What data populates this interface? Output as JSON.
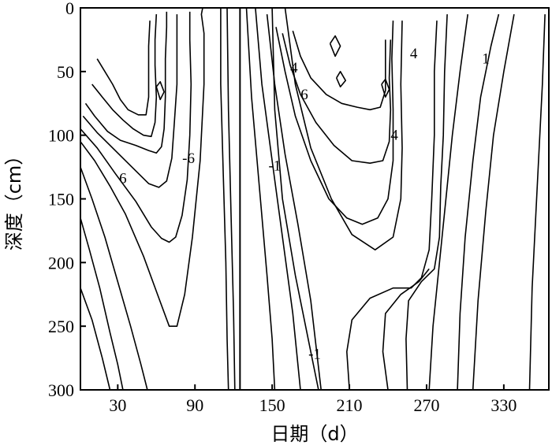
{
  "chart_data": {
    "type": "contour",
    "xlabel": "日期（d）",
    "ylabel": "深度（cm）",
    "xlim": [
      1,
      365
    ],
    "ylim": [
      0,
      300
    ],
    "y_inverted": true,
    "x_ticks": [
      30,
      90,
      150,
      210,
      270,
      330
    ],
    "y_ticks": [
      0,
      50,
      100,
      150,
      200,
      250,
      300
    ],
    "x_tick_labels": [
      "30",
      "90",
      "150",
      "210",
      "270",
      "330"
    ],
    "y_tick_labels": [
      "0",
      "50",
      "100",
      "150",
      "200",
      "250",
      "300"
    ],
    "vertical_marker_x": 125,
    "contour_labels": [
      {
        "text": "6",
        "x": 34,
        "y": 134
      },
      {
        "text": "-6",
        "x": 85,
        "y": 118
      },
      {
        "text": "-1",
        "x": 152,
        "y": 124
      },
      {
        "text": "-1",
        "x": 183,
        "y": 272
      },
      {
        "text": "4",
        "x": 167,
        "y": 47
      },
      {
        "text": "6",
        "x": 175,
        "y": 68
      },
      {
        "text": "4",
        "x": 245,
        "y": 100
      },
      {
        "text": "4",
        "x": 260,
        "y": 36
      },
      {
        "text": "1",
        "x": 316,
        "y": 40
      }
    ],
    "contours": [
      {
        "points": [
          [
            1,
            220
          ],
          [
            10,
            245
          ],
          [
            18,
            275
          ],
          [
            24,
            300
          ]
        ]
      },
      {
        "points": [
          [
            1,
            165
          ],
          [
            8,
            190
          ],
          [
            16,
            220
          ],
          [
            24,
            255
          ],
          [
            30,
            280
          ],
          [
            34,
            300
          ]
        ]
      },
      {
        "points": [
          [
            1,
            125
          ],
          [
            10,
            150
          ],
          [
            20,
            180
          ],
          [
            30,
            215
          ],
          [
            40,
            250
          ],
          [
            48,
            280
          ],
          [
            53,
            300
          ]
        ]
      },
      {
        "points": [
          [
            1,
            105
          ],
          [
            12,
            120
          ],
          [
            24,
            140
          ],
          [
            36,
            162
          ],
          [
            50,
            195
          ],
          [
            62,
            228
          ],
          [
            70,
            250
          ],
          [
            76,
            250
          ],
          [
            82,
            225
          ],
          [
            88,
            180
          ],
          [
            94,
            120
          ],
          [
            97,
            60
          ],
          [
            97,
            20
          ],
          [
            95,
            5
          ],
          [
            96,
            0
          ]
        ]
      },
      {
        "points": [
          [
            1,
            95
          ],
          [
            14,
            110
          ],
          [
            28,
            130
          ],
          [
            44,
            152
          ],
          [
            56,
            172
          ],
          [
            64,
            181
          ],
          [
            70,
            184
          ],
          [
            75,
            180
          ],
          [
            80,
            163
          ],
          [
            84,
            135
          ],
          [
            86,
            100
          ],
          [
            87,
            60
          ],
          [
            86,
            25
          ],
          [
            86,
            3
          ]
        ]
      },
      {
        "points": [
          [
            3,
            85
          ],
          [
            14,
            98
          ],
          [
            28,
            112
          ],
          [
            42,
            126
          ],
          [
            54,
            138
          ],
          [
            62,
            141
          ],
          [
            68,
            136
          ],
          [
            72,
            118
          ],
          [
            74,
            90
          ],
          [
            76,
            60
          ],
          [
            76,
            30
          ],
          [
            76,
            5
          ]
        ]
      },
      {
        "points": [
          [
            5,
            75
          ],
          [
            12,
            85
          ],
          [
            22,
            97
          ],
          [
            32,
            104
          ],
          [
            44,
            108
          ],
          [
            54,
            112
          ],
          [
            60,
            114
          ],
          [
            64,
            109
          ],
          [
            66,
            95
          ],
          [
            67,
            70
          ],
          [
            67,
            40
          ],
          [
            68,
            15
          ],
          [
            68,
            3
          ]
        ]
      },
      {
        "points": [
          [
            10,
            60
          ],
          [
            18,
            70
          ],
          [
            26,
            80
          ],
          [
            34,
            88
          ],
          [
            42,
            95
          ],
          [
            50,
            100
          ],
          [
            56,
            101
          ],
          [
            59,
            90
          ],
          [
            60,
            70
          ],
          [
            59,
            45
          ],
          [
            59,
            25
          ],
          [
            60,
            5
          ]
        ]
      },
      {
        "points": [
          [
            14,
            40
          ],
          [
            20,
            50
          ],
          [
            26,
            60
          ],
          [
            32,
            72
          ],
          [
            38,
            80
          ],
          [
            46,
            84
          ],
          [
            52,
            84
          ],
          [
            54,
            70
          ],
          [
            54,
            50
          ],
          [
            54,
            30
          ],
          [
            55,
            10
          ]
        ]
      },
      {
        "points": [
          [
            110,
            0
          ],
          [
            110,
            60
          ],
          [
            112,
            130
          ],
          [
            114,
            200
          ],
          [
            115,
            260
          ],
          [
            116,
            300
          ]
        ]
      },
      {
        "points": [
          [
            115,
            0
          ],
          [
            116,
            80
          ],
          [
            118,
            160
          ],
          [
            120,
            240
          ],
          [
            121,
            300
          ]
        ]
      },
      {
        "points": [
          [
            130,
            0
          ],
          [
            134,
            70
          ],
          [
            140,
            140
          ],
          [
            146,
            210
          ],
          [
            150,
            260
          ],
          [
            152,
            300
          ]
        ]
      },
      {
        "points": [
          [
            137,
            0
          ],
          [
            142,
            60
          ],
          [
            150,
            120
          ],
          [
            158,
            180
          ],
          [
            166,
            240
          ],
          [
            172,
            300
          ]
        ]
      },
      {
        "points": [
          [
            146,
            5
          ],
          [
            152,
            60
          ],
          [
            160,
            115
          ],
          [
            170,
            170
          ],
          [
            180,
            230
          ],
          [
            188,
            300
          ]
        ]
      },
      {
        "points": [
          [
            153,
            15
          ],
          [
            160,
            50
          ],
          [
            168,
            85
          ],
          [
            180,
            120
          ],
          [
            194,
            150
          ],
          [
            208,
            165
          ],
          [
            220,
            170
          ],
          [
            232,
            165
          ],
          [
            240,
            150
          ],
          [
            244,
            120
          ],
          [
            244,
            80
          ],
          [
            243,
            40
          ],
          [
            244,
            10
          ]
        ]
      },
      {
        "points": [
          [
            158,
            20
          ],
          [
            164,
            45
          ],
          [
            172,
            68
          ],
          [
            184,
            90
          ],
          [
            198,
            108
          ],
          [
            212,
            120
          ],
          [
            226,
            122
          ],
          [
            236,
            120
          ],
          [
            241,
            105
          ],
          [
            242,
            80
          ],
          [
            241,
            55
          ],
          [
            242,
            25
          ]
        ]
      },
      {
        "points": [
          [
            166,
            18
          ],
          [
            172,
            38
          ],
          [
            180,
            55
          ],
          [
            192,
            68
          ],
          [
            204,
            75
          ],
          [
            216,
            78
          ],
          [
            226,
            80
          ],
          [
            234,
            78
          ],
          [
            238,
            65
          ],
          [
            238,
            45
          ],
          [
            238,
            25
          ]
        ]
      },
      {
        "points": [
          [
            150,
            0
          ],
          [
            152,
            80
          ],
          [
            158,
            150
          ],
          [
            168,
            210
          ],
          [
            178,
            260
          ],
          [
            186,
            300
          ]
        ]
      },
      {
        "points": [
          [
            160,
            0
          ],
          [
            168,
            60
          ],
          [
            180,
            110
          ],
          [
            196,
            150
          ],
          [
            212,
            178
          ],
          [
            230,
            190
          ],
          [
            244,
            180
          ],
          [
            250,
            150
          ],
          [
            251,
            110
          ],
          [
            250,
            60
          ],
          [
            251,
            10
          ]
        ]
      },
      {
        "points": [
          [
            210,
            300
          ],
          [
            208,
            270
          ],
          [
            212,
            245
          ],
          [
            226,
            228
          ],
          [
            244,
            220
          ],
          [
            258,
            220
          ],
          [
            266,
            212
          ],
          [
            272,
            190
          ],
          [
            274,
            150
          ],
          [
            276,
            100
          ],
          [
            276,
            50
          ],
          [
            278,
            10
          ]
        ]
      },
      {
        "points": [
          [
            240,
            300
          ],
          [
            236,
            270
          ],
          [
            238,
            240
          ],
          [
            250,
            225
          ],
          [
            264,
            215
          ],
          [
            272,
            205
          ]
        ]
      },
      {
        "points": [
          [
            255,
            300
          ],
          [
            254,
            260
          ],
          [
            256,
            230
          ],
          [
            266,
            215
          ],
          [
            276,
            205
          ],
          [
            280,
            180
          ],
          [
            281,
            140
          ],
          [
            283,
            100
          ],
          [
            284,
            50
          ],
          [
            286,
            5
          ]
        ]
      },
      {
        "points": [
          [
            272,
            300
          ],
          [
            275,
            250
          ],
          [
            280,
            200
          ],
          [
            285,
            150
          ],
          [
            290,
            100
          ],
          [
            296,
            50
          ],
          [
            302,
            5
          ]
        ]
      },
      {
        "points": [
          [
            294,
            300
          ],
          [
            296,
            240
          ],
          [
            300,
            180
          ],
          [
            306,
            120
          ],
          [
            312,
            70
          ],
          [
            320,
            30
          ],
          [
            326,
            5
          ]
        ]
      },
      {
        "points": [
          [
            306,
            300
          ],
          [
            310,
            230
          ],
          [
            316,
            160
          ],
          [
            322,
            100
          ],
          [
            330,
            50
          ],
          [
            338,
            5
          ]
        ]
      },
      {
        "points": [
          [
            350,
            300
          ],
          [
            352,
            220
          ],
          [
            356,
            140
          ],
          [
            360,
            60
          ],
          [
            362,
            5
          ]
        ]
      },
      {
        "points": [
          [
            200,
            55
          ],
          [
            203,
            62
          ],
          [
            207,
            57
          ],
          [
            203,
            50
          ],
          [
            200,
            55
          ]
        ]
      },
      {
        "points": [
          [
            235,
            60
          ],
          [
            238,
            70
          ],
          [
            241,
            64
          ],
          [
            238,
            56
          ],
          [
            235,
            60
          ]
        ]
      },
      {
        "points": [
          [
            60,
            62
          ],
          [
            63,
            72
          ],
          [
            66,
            66
          ],
          [
            63,
            58
          ],
          [
            60,
            62
          ]
        ]
      },
      {
        "points": [
          [
            195,
            28
          ],
          [
            199,
            38
          ],
          [
            203,
            30
          ],
          [
            199,
            22
          ],
          [
            195,
            28
          ]
        ]
      }
    ]
  }
}
